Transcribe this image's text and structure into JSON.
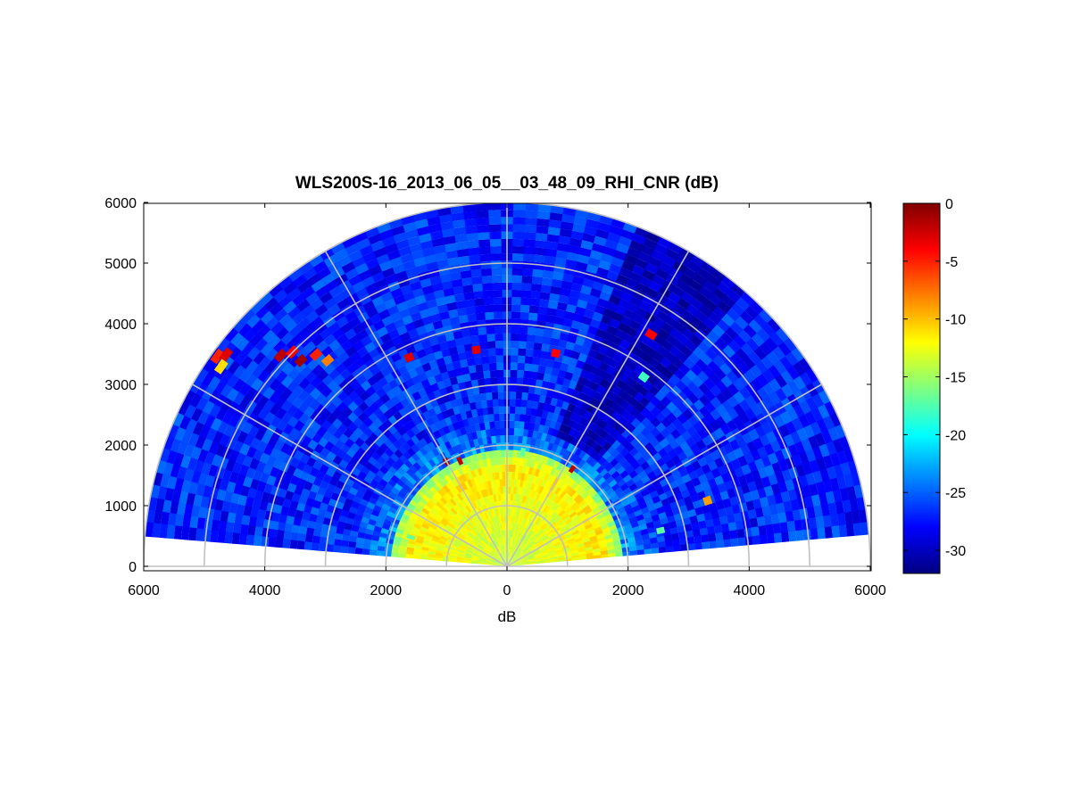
{
  "chart_data": {
    "type": "heatmap",
    "subtype": "polar-rhi",
    "title": "WLS200S-16_2013_06_05__03_48_09_RHI_CNR (dB)",
    "xlabel": "dB",
    "ylabel": "",
    "xlim": [
      -6000,
      6000
    ],
    "ylim": [
      0,
      6000
    ],
    "x_tick_labels": [
      "6000",
      "4000",
      "2000",
      "0",
      "2000",
      "4000",
      "6000"
    ],
    "x_tick_values": [
      -6000,
      -4000,
      -2000,
      0,
      2000,
      4000,
      6000
    ],
    "y_tick_labels": [
      "0",
      "1000",
      "2000",
      "3000",
      "4000",
      "5000",
      "6000"
    ],
    "y_tick_values": [
      0,
      1000,
      2000,
      3000,
      4000,
      5000,
      6000
    ],
    "range_rings": [
      1000,
      2000,
      3000,
      4000,
      5000,
      6000
    ],
    "spokes_deg": [
      30,
      60,
      90,
      120,
      150
    ],
    "max_range": 6000,
    "elevation_deg_range": [
      5,
      175
    ],
    "grid": true,
    "colorbar": {
      "position": "right",
      "colormap": "jet",
      "clim": [
        -32,
        0
      ],
      "ticks": [
        0,
        -5,
        -10,
        -15,
        -20,
        -25,
        -30
      ],
      "tick_labels": [
        "0",
        "-5",
        "-10",
        "-15",
        "-20",
        "-25",
        "-30"
      ]
    },
    "field_description": {
      "near_range_cnr_db": -13,
      "near_range_extent_m": 1900,
      "background_cnr_db": -27,
      "low_signal_sector_deg": [
        48,
        68
      ],
      "low_signal_sector_cnr_db": -30
    },
    "features": [
      {
        "range": 1990,
        "angle_deg": 120,
        "cnr_db": -1
      },
      {
        "range": 1900,
        "angle_deg": 114,
        "cnr_db": -2
      },
      {
        "range": 1930,
        "angle_deg": 56,
        "cnr_db": -2
      },
      {
        "range": 5900,
        "angle_deg": 144,
        "cnr_db": -5
      },
      {
        "range": 5800,
        "angle_deg": 143,
        "cnr_db": -3
      },
      {
        "range": 5750,
        "angle_deg": 145,
        "cnr_db": -11
      },
      {
        "range": 5100,
        "angle_deg": 137,
        "cnr_db": -2
      },
      {
        "range": 5000,
        "angle_deg": 135,
        "cnr_db": -4
      },
      {
        "range": 4800,
        "angle_deg": 135,
        "cnr_db": -1
      },
      {
        "range": 4700,
        "angle_deg": 132,
        "cnr_db": -5
      },
      {
        "range": 4500,
        "angle_deg": 131,
        "cnr_db": -8
      },
      {
        "range": 3800,
        "angle_deg": 115,
        "cnr_db": -3
      },
      {
        "range": 3600,
        "angle_deg": 98,
        "cnr_db": -3
      },
      {
        "range": 3600,
        "angle_deg": 77,
        "cnr_db": -4
      },
      {
        "range": 4500,
        "angle_deg": 58,
        "cnr_db": -4
      },
      {
        "range": 3480,
        "angle_deg": 18,
        "cnr_db": -9
      },
      {
        "range": 3850,
        "angle_deg": 54,
        "cnr_db": -18
      },
      {
        "range": 1900,
        "angle_deg": 82,
        "cnr_db": -17
      },
      {
        "range": 1650,
        "angle_deg": 163,
        "cnr_db": -17
      },
      {
        "range": 2600,
        "angle_deg": 13,
        "cnr_db": -17
      }
    ]
  },
  "colors": {
    "grid": "#c0c0c0",
    "axes": "#000000",
    "background": "#ffffff"
  }
}
